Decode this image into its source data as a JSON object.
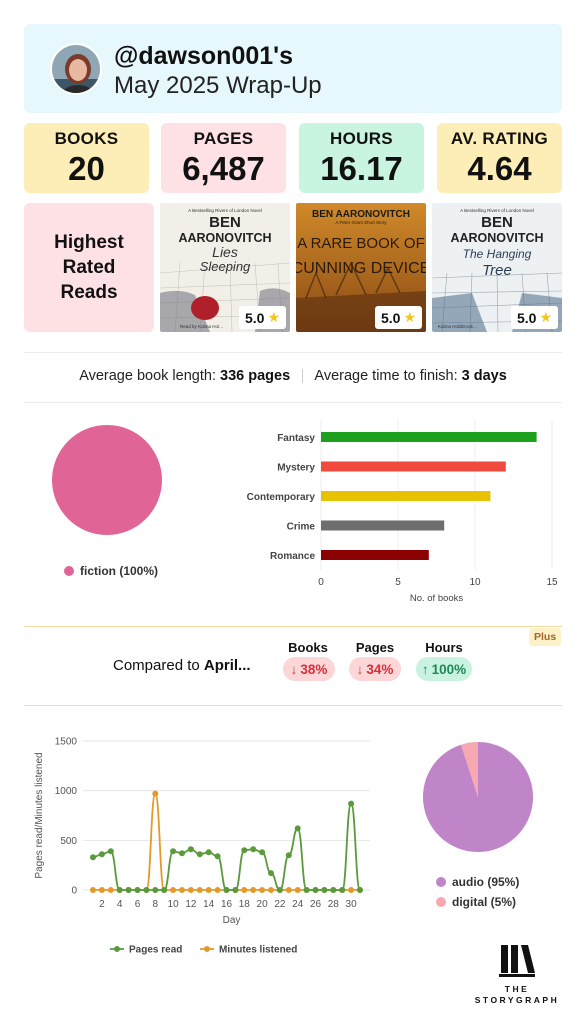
{
  "header": {
    "username": "@dawson001's",
    "subtitle": "May 2025 Wrap-Up"
  },
  "stats": [
    {
      "label": "BOOKS",
      "value": "20",
      "color": "#fdedb7"
    },
    {
      "label": "PAGES",
      "value": "6,487",
      "color": "#fde1e4"
    },
    {
      "label": "HOURS",
      "value": "16.17",
      "color": "#c9f4e0"
    },
    {
      "label": "AV. RATING",
      "value": "4.64",
      "color": "#fdedb7"
    }
  ],
  "highest_rated": {
    "label": "Highest Rated Reads",
    "books": [
      {
        "tagline": "A Bestselling Rivers of London Novel",
        "author": "BEN AARONOVITCH",
        "title": "LIES SLEEPING",
        "footer": "Read by Kobna Hol…",
        "rating": "5.0"
      },
      {
        "tagline": "",
        "author": "BEN AARONOVITCH",
        "title": "A RARE BOOK OF CUNNING DEVICE",
        "footer": "A Peter Grant Short Story",
        "rating": "5.0"
      },
      {
        "tagline": "A Bestselling Rivers of London Novel",
        "author": "BEN AARONOVITCH",
        "title": "THE HANGING TREE",
        "footer": "Kobna Holdbrook…",
        "rating": "5.0"
      }
    ]
  },
  "averages": {
    "length_label": "Average book length:",
    "length_value": "336 pages",
    "time_label": "Average time to finish:",
    "time_value": "3 days"
  },
  "fiction_pie": {
    "legend": "fiction (100%)",
    "color": "#e06496"
  },
  "genre_chart": {
    "type": "bar",
    "orientation": "horizontal",
    "categories": [
      "Fantasy",
      "Mystery",
      "Contemporary",
      "Crime",
      "Romance"
    ],
    "values": [
      14,
      12,
      11,
      8,
      7
    ],
    "colors": [
      "#1da01d",
      "#f04a3e",
      "#e6c200",
      "#6e6e6e",
      "#8b0000"
    ],
    "xlabel": "No. of books",
    "xticks": [
      "0",
      "5",
      "10",
      "15"
    ],
    "xlim": [
      0,
      15
    ]
  },
  "comparison": {
    "badge": "Plus",
    "label_prefix": "Compared to ",
    "label_month": "April...",
    "items": [
      {
        "header": "Books",
        "value": "38%",
        "direction": "down",
        "arrow": "↓"
      },
      {
        "header": "Pages",
        "value": "34%",
        "direction": "down",
        "arrow": "↓"
      },
      {
        "header": "Hours",
        "value": "100%",
        "direction": "up",
        "arrow": "↑"
      }
    ]
  },
  "chart_data": [
    {
      "type": "line",
      "x": [
        1,
        2,
        3,
        4,
        5,
        6,
        7,
        8,
        9,
        10,
        11,
        12,
        13,
        14,
        15,
        16,
        17,
        18,
        19,
        20,
        21,
        22,
        23,
        24,
        25,
        26,
        27,
        28,
        29,
        30,
        31
      ],
      "series": [
        {
          "name": "Pages read",
          "color": "#5a9a3c",
          "values": [
            330,
            360,
            390,
            0,
            0,
            0,
            0,
            0,
            0,
            390,
            370,
            410,
            360,
            380,
            340,
            0,
            0,
            400,
            410,
            380,
            170,
            0,
            350,
            620,
            0,
            0,
            0,
            0,
            0,
            870,
            0
          ]
        },
        {
          "name": "Minutes listened",
          "color": "#e39a2b",
          "values": [
            0,
            0,
            0,
            0,
            0,
            0,
            0,
            970,
            0,
            0,
            0,
            0,
            0,
            0,
            0,
            0,
            0,
            0,
            0,
            0,
            0,
            0,
            0,
            0,
            0,
            0,
            0,
            0,
            0,
            0,
            0
          ]
        }
      ],
      "ylabel": "Pages read/Minutes listened",
      "xlabel": "Day",
      "ylim": [
        0,
        1500
      ],
      "yticks": [
        "0",
        "500",
        "1000",
        "1500"
      ],
      "xticks": [
        "2",
        "4",
        "6",
        "8",
        "10",
        "12",
        "14",
        "16",
        "18",
        "20",
        "22",
        "24",
        "26",
        "28",
        "30"
      ]
    },
    {
      "type": "pie",
      "slices": [
        {
          "name": "audio (95%)",
          "value": 95,
          "color": "#c084c8"
        },
        {
          "name": "digital (5%)",
          "value": 5,
          "color": "#f7a9b1"
        }
      ]
    }
  ],
  "logo": {
    "line1": "THE",
    "line2": "STORYGRAPH"
  }
}
